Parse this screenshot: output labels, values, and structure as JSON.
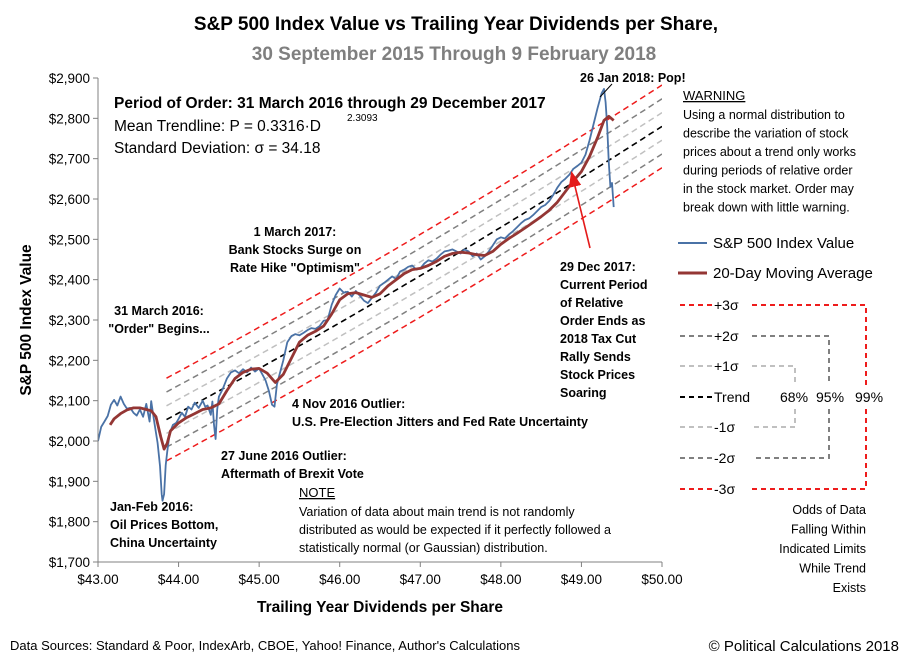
{
  "chart_data": {
    "type": "line",
    "title": "S&P 500 Index Value vs Trailing Year Dividends per Share,",
    "subtitle": "30 September 2015 Through 9 February 2018",
    "xlabel": "Trailing Year Dividends per Share",
    "ylabel": "S&P 500 Index Value",
    "xlim": [
      43.0,
      50.0
    ],
    "ylim": [
      1700,
      2900
    ],
    "x_ticks": [
      "$43.00",
      "$44.00",
      "$45.00",
      "$46.00",
      "$47.00",
      "$48.00",
      "$49.00",
      "$50.00"
    ],
    "y_ticks": [
      "$1,700",
      "$1,800",
      "$1,900",
      "$2,000",
      "$2,100",
      "$2,200",
      "$2,300",
      "$2,400",
      "$2,500",
      "$2,600",
      "$2,700",
      "$2,800",
      "$2,900"
    ],
    "gridlines": false,
    "trend": {
      "coef": 0.3316,
      "exponent": 2.3093,
      "sigma": 34.18,
      "x_range": [
        43.85,
        50.0
      ]
    },
    "series": [
      {
        "name": "S&P 500 Index Value",
        "color": "#4a72a6",
        "points": [
          [
            43.0,
            2000
          ],
          [
            43.04,
            2035
          ],
          [
            43.08,
            2048
          ],
          [
            43.12,
            2062
          ],
          [
            43.16,
            2090
          ],
          [
            43.2,
            2102
          ],
          [
            43.24,
            2088
          ],
          [
            43.28,
            2110
          ],
          [
            43.32,
            2092
          ],
          [
            43.36,
            2080
          ],
          [
            43.4,
            2082
          ],
          [
            43.44,
            2070
          ],
          [
            43.48,
            2063
          ],
          [
            43.52,
            2078
          ],
          [
            43.56,
            2060
          ],
          [
            43.6,
            2092
          ],
          [
            43.64,
            2048
          ],
          [
            43.66,
            2099
          ],
          [
            43.7,
            2045
          ],
          [
            43.74,
            1995
          ],
          [
            43.77,
            1938
          ],
          [
            43.79,
            1868
          ],
          [
            43.8,
            1852
          ],
          [
            43.82,
            1868
          ],
          [
            43.84,
            1940
          ],
          [
            43.86,
            1975
          ],
          [
            43.88,
            2005
          ],
          [
            43.9,
            2025
          ],
          [
            43.93,
            2040
          ],
          [
            43.97,
            2045
          ],
          [
            44.0,
            2055
          ],
          [
            44.04,
            2070
          ],
          [
            44.08,
            2060
          ],
          [
            44.12,
            2085
          ],
          [
            44.16,
            2078
          ],
          [
            44.2,
            2095
          ],
          [
            44.25,
            2082
          ],
          [
            44.3,
            2100
          ],
          [
            44.33,
            2085
          ],
          [
            44.36,
            2088
          ],
          [
            44.4,
            2065
          ],
          [
            44.42,
            2098
          ],
          [
            44.44,
            2040
          ],
          [
            44.46,
            2005
          ],
          [
            44.48,
            2078
          ],
          [
            44.5,
            2110
          ],
          [
            44.55,
            2130
          ],
          [
            44.6,
            2155
          ],
          [
            44.65,
            2170
          ],
          [
            44.7,
            2175
          ],
          [
            44.75,
            2168
          ],
          [
            44.8,
            2178
          ],
          [
            44.85,
            2170
          ],
          [
            44.9,
            2182
          ],
          [
            44.95,
            2172
          ],
          [
            45.0,
            2180
          ],
          [
            45.04,
            2165
          ],
          [
            45.08,
            2150
          ],
          [
            45.12,
            2125
          ],
          [
            45.16,
            2090
          ],
          [
            45.19,
            2085
          ],
          [
            45.22,
            2140
          ],
          [
            45.26,
            2170
          ],
          [
            45.3,
            2200
          ],
          [
            45.35,
            2245
          ],
          [
            45.4,
            2260
          ],
          [
            45.45,
            2265
          ],
          [
            45.5,
            2262
          ],
          [
            45.55,
            2268
          ],
          [
            45.6,
            2275
          ],
          [
            45.65,
            2280
          ],
          [
            45.7,
            2278
          ],
          [
            45.75,
            2285
          ],
          [
            45.8,
            2298
          ],
          [
            45.85,
            2300
          ],
          [
            45.9,
            2338
          ],
          [
            45.95,
            2362
          ],
          [
            46.0,
            2378
          ],
          [
            46.05,
            2368
          ],
          [
            46.1,
            2370
          ],
          [
            46.15,
            2358
          ],
          [
            46.2,
            2372
          ],
          [
            46.25,
            2360
          ],
          [
            46.3,
            2348
          ],
          [
            46.35,
            2342
          ],
          [
            46.4,
            2355
          ],
          [
            46.45,
            2368
          ],
          [
            46.5,
            2385
          ],
          [
            46.55,
            2392
          ],
          [
            46.6,
            2400
          ],
          [
            46.65,
            2408
          ],
          [
            46.7,
            2402
          ],
          [
            46.75,
            2420
          ],
          [
            46.8,
            2425
          ],
          [
            46.85,
            2432
          ],
          [
            46.9,
            2435
          ],
          [
            46.95,
            2425
          ],
          [
            47.0,
            2428
          ],
          [
            47.05,
            2440
          ],
          [
            47.1,
            2448
          ],
          [
            47.15,
            2445
          ],
          [
            47.2,
            2452
          ],
          [
            47.25,
            2462
          ],
          [
            47.3,
            2470
          ],
          [
            47.35,
            2472
          ],
          [
            47.4,
            2475
          ],
          [
            47.45,
            2470
          ],
          [
            47.5,
            2465
          ],
          [
            47.55,
            2475
          ],
          [
            47.6,
            2470
          ],
          [
            47.65,
            2458
          ],
          [
            47.7,
            2465
          ],
          [
            47.75,
            2450
          ],
          [
            47.8,
            2458
          ],
          [
            47.85,
            2470
          ],
          [
            47.9,
            2485
          ],
          [
            47.95,
            2500
          ],
          [
            48.0,
            2505
          ],
          [
            48.05,
            2502
          ],
          [
            48.1,
            2512
          ],
          [
            48.15,
            2520
          ],
          [
            48.2,
            2530
          ],
          [
            48.25,
            2540
          ],
          [
            48.3,
            2548
          ],
          [
            48.35,
            2552
          ],
          [
            48.4,
            2560
          ],
          [
            48.45,
            2570
          ],
          [
            48.5,
            2580
          ],
          [
            48.55,
            2585
          ],
          [
            48.6,
            2595
          ],
          [
            48.65,
            2610
          ],
          [
            48.7,
            2628
          ],
          [
            48.75,
            2642
          ],
          [
            48.8,
            2650
          ],
          [
            48.85,
            2660
          ],
          [
            48.9,
            2675
          ],
          [
            48.95,
            2682
          ],
          [
            49.0,
            2690
          ],
          [
            49.05,
            2710
          ],
          [
            49.1,
            2745
          ],
          [
            49.15,
            2785
          ],
          [
            49.2,
            2825
          ],
          [
            49.25,
            2862
          ],
          [
            49.28,
            2873
          ],
          [
            49.3,
            2840
          ],
          [
            49.32,
            2780
          ],
          [
            49.34,
            2690
          ],
          [
            49.36,
            2630
          ],
          [
            49.38,
            2640
          ],
          [
            49.4,
            2580
          ]
        ]
      },
      {
        "name": "20-Day Moving Average",
        "color": "#943634",
        "points": [
          [
            43.15,
            2040
          ],
          [
            43.2,
            2055
          ],
          [
            43.28,
            2068
          ],
          [
            43.36,
            2077
          ],
          [
            43.44,
            2082
          ],
          [
            43.52,
            2082
          ],
          [
            43.6,
            2078
          ],
          [
            43.66,
            2075
          ],
          [
            43.72,
            2060
          ],
          [
            43.78,
            2010
          ],
          [
            43.82,
            1980
          ],
          [
            43.86,
            1995
          ],
          [
            43.9,
            2025
          ],
          [
            44.0,
            2045
          ],
          [
            44.1,
            2058
          ],
          [
            44.2,
            2068
          ],
          [
            44.3,
            2078
          ],
          [
            44.4,
            2082
          ],
          [
            44.5,
            2092
          ],
          [
            44.6,
            2125
          ],
          [
            44.7,
            2155
          ],
          [
            44.8,
            2170
          ],
          [
            44.9,
            2178
          ],
          [
            45.0,
            2180
          ],
          [
            45.1,
            2168
          ],
          [
            45.2,
            2145
          ],
          [
            45.3,
            2165
          ],
          [
            45.4,
            2205
          ],
          [
            45.5,
            2245
          ],
          [
            45.6,
            2262
          ],
          [
            45.7,
            2272
          ],
          [
            45.8,
            2285
          ],
          [
            45.9,
            2315
          ],
          [
            46.0,
            2350
          ],
          [
            46.1,
            2365
          ],
          [
            46.2,
            2368
          ],
          [
            46.3,
            2362
          ],
          [
            46.4,
            2356
          ],
          [
            46.5,
            2365
          ],
          [
            46.6,
            2385
          ],
          [
            46.7,
            2400
          ],
          [
            46.8,
            2415
          ],
          [
            46.9,
            2425
          ],
          [
            47.0,
            2428
          ],
          [
            47.1,
            2435
          ],
          [
            47.2,
            2445
          ],
          [
            47.3,
            2458
          ],
          [
            47.4,
            2465
          ],
          [
            47.5,
            2468
          ],
          [
            47.6,
            2466
          ],
          [
            47.7,
            2462
          ],
          [
            47.8,
            2460
          ],
          [
            47.9,
            2470
          ],
          [
            48.0,
            2488
          ],
          [
            48.1,
            2502
          ],
          [
            48.2,
            2515
          ],
          [
            48.3,
            2528
          ],
          [
            48.4,
            2542
          ],
          [
            48.5,
            2556
          ],
          [
            48.6,
            2572
          ],
          [
            48.7,
            2592
          ],
          [
            48.8,
            2618
          ],
          [
            48.9,
            2645
          ],
          [
            49.0,
            2668
          ],
          [
            49.1,
            2705
          ],
          [
            49.2,
            2752
          ],
          [
            49.28,
            2795
          ],
          [
            49.34,
            2805
          ],
          [
            49.4,
            2795
          ]
        ]
      }
    ],
    "legend": {
      "placement": "right",
      "sigma_bands": [
        "+3σ",
        "+2σ",
        "+1σ",
        "Trend",
        "-1σ",
        "-2σ",
        "-3σ"
      ],
      "band_colors": [
        "#ee1c1c",
        "#808080",
        "#c0c0c0",
        "#000000",
        "#c0c0c0",
        "#808080",
        "#ee1c1c"
      ],
      "percentages": [
        "68%",
        "95%",
        "99%"
      ],
      "odds_caption": [
        "Odds of Data",
        "Falling Within",
        "Indicated Limits",
        "While Trend",
        "Exists"
      ]
    },
    "annotations": {
      "pop": "26 Jan 2018:  Pop!",
      "order_title": "Period of Order: 31 March 2016 through 29 December 2017",
      "mean_trendline": "Mean Trendline: P = 0.3316·D",
      "mean_exponent": "2.3093",
      "std_dev": "Standard Deviation: σ = 34.18",
      "warning_title": "WARNING",
      "warning_lines": [
        "Using a  normal distribution to",
        "describe the variation of stock",
        "prices about a trend only works",
        "during periods of relative order",
        "in the stock market.  Order may",
        "break down with little warning."
      ],
      "bank_stocks": [
        "1 March 2017:",
        "Bank Stocks Surge on",
        "Rate Hike \"Optimism\""
      ],
      "order_begins": [
        "31 March 2016:",
        "\"Order\" Begins..."
      ],
      "dec29": [
        "29 Dec 2017:",
        "Current Period",
        "of Relative",
        "Order Ends as",
        "2018 Tax Cut",
        "Rally Sends",
        "Stock Prices",
        "Soaring"
      ],
      "nov4": [
        "4 Nov 2016  Outlier:",
        "U.S. Pre-Election Jitters and Fed Rate Uncertainty"
      ],
      "june27": [
        "27 June 2016  Outlier:",
        "Aftermath of Brexit Vote"
      ],
      "janfeb": [
        "Jan-Feb 2016:",
        "Oil Prices Bottom,",
        "China Uncertainty"
      ],
      "note_title": "NOTE",
      "note_lines": [
        "Variation of data about main trend is not randomly",
        "distributed as would be expected if  it perfectly followed a",
        "statistically normal (or Gaussian) distribution."
      ]
    },
    "footer": {
      "sources": "Data Sources: Standard & Poor, IndexArb, CBOE, Yahoo! Finance, Author's Calculations",
      "copyright": "© Political Calculations 2018"
    }
  }
}
